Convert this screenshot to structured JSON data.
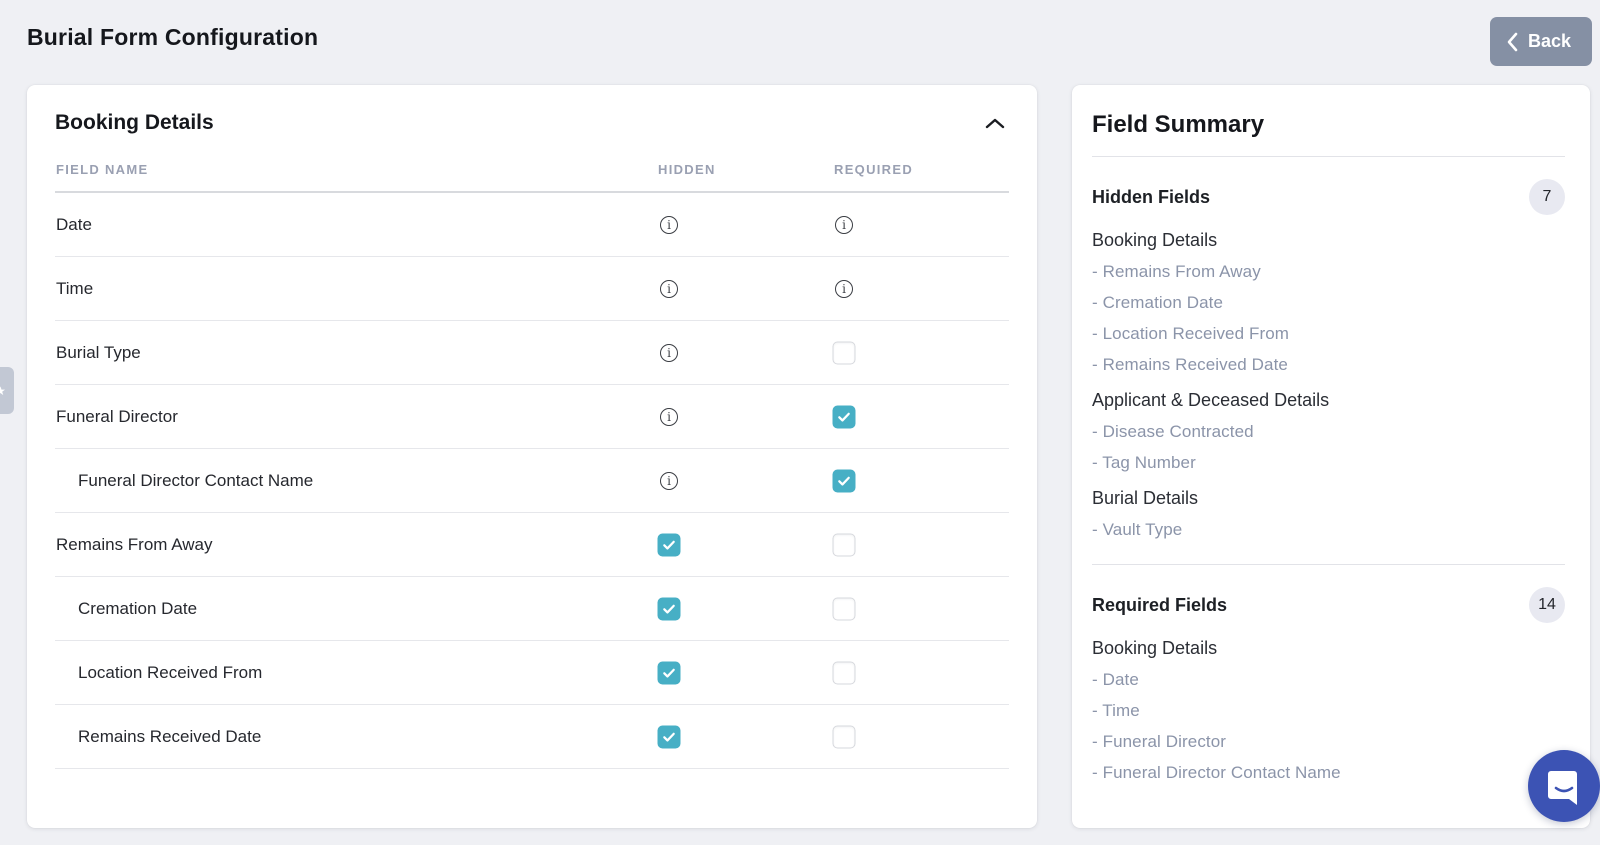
{
  "header": {
    "title": "Burial Form Configuration",
    "back_label": "Back"
  },
  "colors": {
    "accent_teal": "#47AFC5",
    "back_button_gray": "#8590A4",
    "chat_blue": "#3C53B4",
    "badge_bg": "#E8E9F1",
    "summary_item_gray": "#8B94A9"
  },
  "booking_section": {
    "title": "Booking Details",
    "columns": {
      "field_name": "FIELD NAME",
      "hidden": "HIDDEN",
      "required": "REQUIRED"
    },
    "rows": [
      {
        "label": "Date",
        "indent": false,
        "hidden": "info",
        "required": "info"
      },
      {
        "label": "Time",
        "indent": false,
        "hidden": "info",
        "required": "info"
      },
      {
        "label": "Burial Type",
        "indent": false,
        "hidden": "info",
        "required": "unchecked"
      },
      {
        "label": "Funeral Director",
        "indent": false,
        "hidden": "info",
        "required": "checked"
      },
      {
        "label": "Funeral Director Contact Name",
        "indent": true,
        "hidden": "info",
        "required": "checked"
      },
      {
        "label": "Remains From Away",
        "indent": false,
        "hidden": "checked",
        "required": "unchecked"
      },
      {
        "label": "Cremation Date",
        "indent": true,
        "hidden": "checked",
        "required": "unchecked"
      },
      {
        "label": "Location Received From",
        "indent": true,
        "hidden": "checked",
        "required": "unchecked"
      },
      {
        "label": "Remains Received Date",
        "indent": true,
        "hidden": "checked",
        "required": "unchecked"
      }
    ]
  },
  "field_summary": {
    "title": "Field Summary",
    "item_prefix": "- ",
    "sections": [
      {
        "heading": "Hidden Fields",
        "count": "7",
        "groups": [
          {
            "name": "Booking Details",
            "items": [
              "Remains From Away",
              "Cremation Date",
              "Location Received From",
              "Remains Received Date"
            ]
          },
          {
            "name": "Applicant & Deceased Details",
            "items": [
              "Disease Contracted",
              "Tag Number"
            ]
          },
          {
            "name": "Burial Details",
            "items": [
              "Vault Type"
            ]
          }
        ]
      },
      {
        "heading": "Required Fields",
        "count": "14",
        "groups": [
          {
            "name": "Booking Details",
            "items": [
              "Date",
              "Time",
              "Funeral Director",
              "Funeral Director Contact Name"
            ]
          }
        ]
      }
    ]
  }
}
